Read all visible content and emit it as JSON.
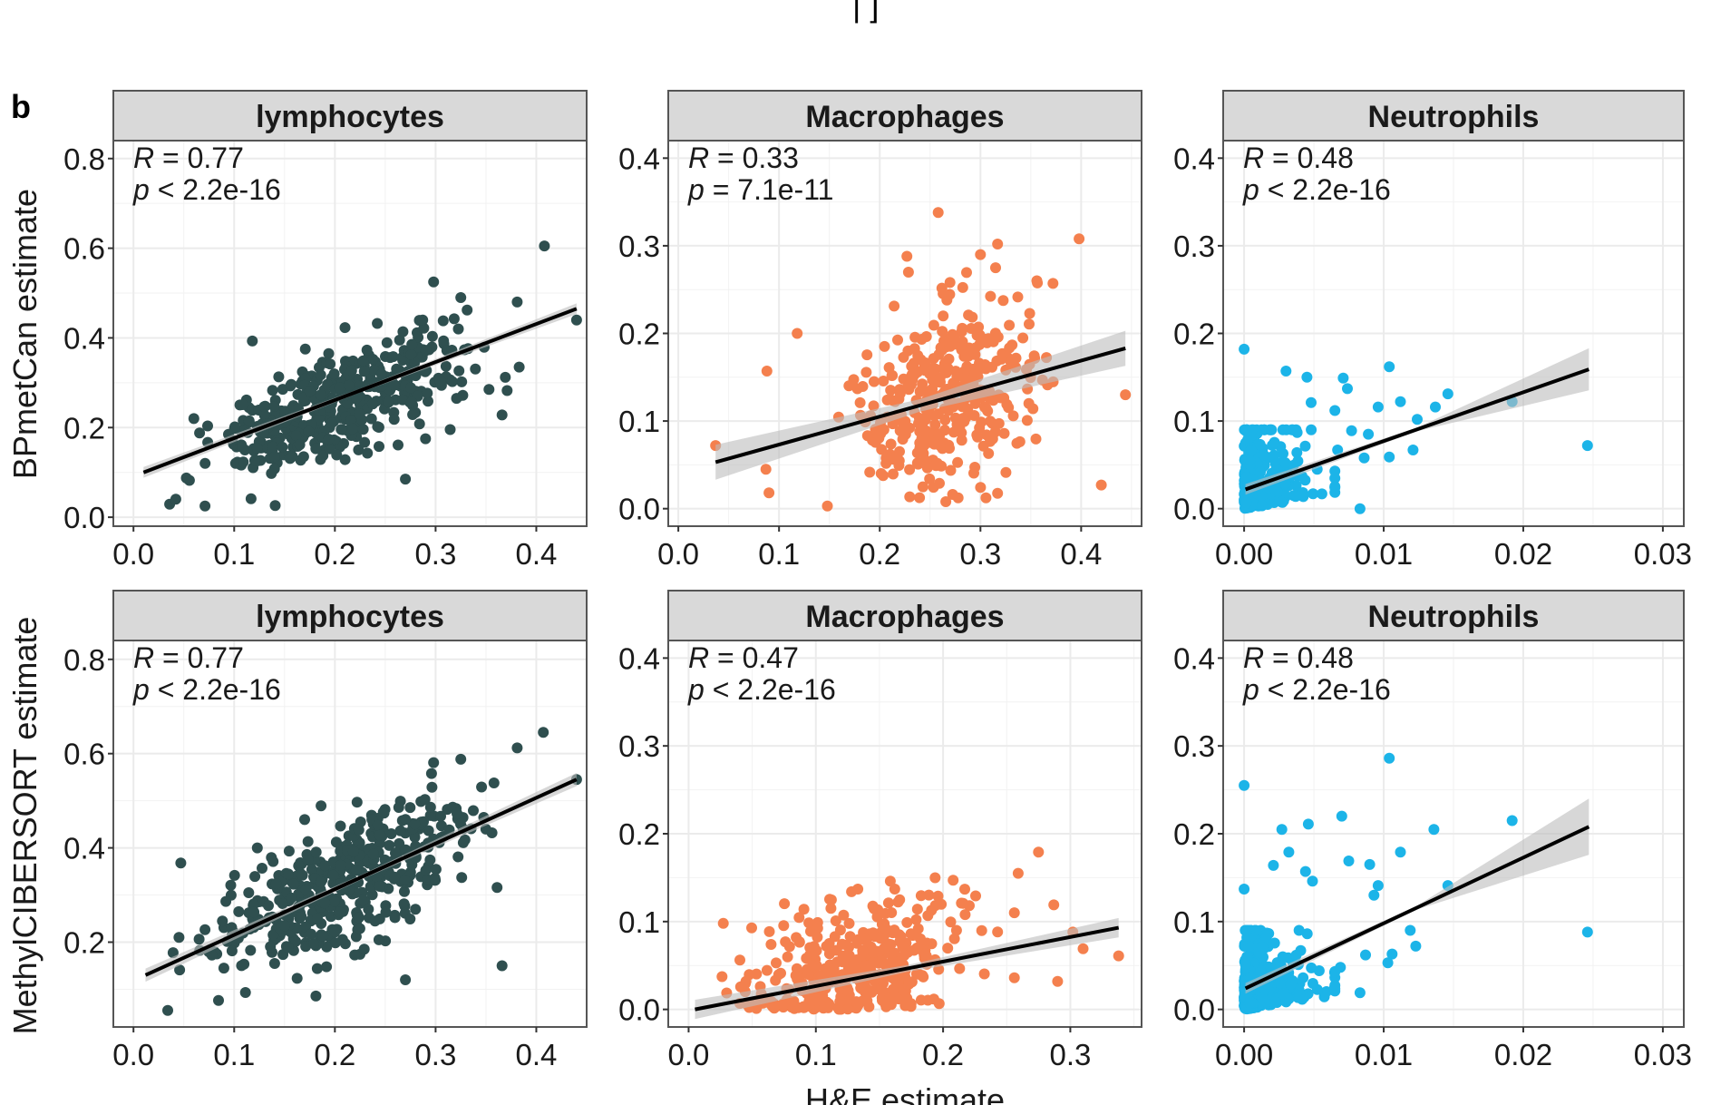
{
  "figure": {
    "panel_letter": "b",
    "top_cut_text": "| ]",
    "x_axis_title": "H&E estimate",
    "row_y_titles": [
      "BPmetCan estimate",
      "MethylCIBERSORT estimate"
    ]
  },
  "colors": {
    "lymphocytes": "#2f4f4f",
    "macrophages": "#f4804e",
    "neutrophils": "#1cb4e8",
    "fit_line": "#000000",
    "ci_band": "#bdbdbd",
    "strip_fill": "#d9d9d9",
    "grid": "#ebebeb"
  },
  "chart_data": [
    {
      "type": "scatter",
      "row": 0,
      "col": 0,
      "group": "lymphocytes",
      "title": "lymphocytes",
      "ylabel": "BPmetCan estimate",
      "xlabel": "",
      "annotation": {
        "R": "R = 0.77",
        "p": "p < 2.2e-16",
        "r_val": "0.77",
        "p_op": "<",
        "p_val": "2.2e-16"
      },
      "xlim": [
        -0.02,
        0.45
      ],
      "ylim": [
        -0.02,
        0.84
      ],
      "xticks": [
        0.0,
        0.1,
        0.2,
        0.3,
        0.4
      ],
      "xtick_labels": [
        "0.0",
        "0.1",
        "0.2",
        "0.3",
        "0.4"
      ],
      "yticks": [
        0.0,
        0.2,
        0.4,
        0.6,
        0.8
      ],
      "ytick_labels": [
        "0.0",
        "0.2",
        "0.4",
        "0.6",
        "0.8"
      ],
      "fit": {
        "x": [
          0.01,
          0.44
        ],
        "y": [
          0.1,
          0.465
        ],
        "ci": 0.012
      },
      "n_points_approx": 450,
      "generator": {
        "seed": 11,
        "n": 430,
        "xdist": [
          0.02,
          0.34
        ],
        "slope": 0.85,
        "intercept": 0.09,
        "noise": 0.06,
        "ymin": 0.02
      },
      "outliers": [
        [
          0.408,
          0.605
        ],
        [
          0.298,
          0.525
        ],
        [
          0.325,
          0.49
        ],
        [
          0.381,
          0.48
        ],
        [
          0.44,
          0.44
        ],
        [
          0.118,
          0.393
        ],
        [
          0.27,
          0.085
        ],
        [
          0.353,
          0.285
        ],
        [
          0.366,
          0.228
        ],
        [
          0.383,
          0.335
        ],
        [
          0.29,
          0.175
        ],
        [
          0.071,
          0.025
        ],
        [
          0.042,
          0.04
        ]
      ]
    },
    {
      "type": "scatter",
      "row": 0,
      "col": 1,
      "group": "macrophages",
      "title": "Macrophages",
      "ylabel": "",
      "xlabel": "",
      "annotation": {
        "R": "R = 0.33",
        "p": "p = 7.1e-11",
        "r_val": "0.33",
        "p_op": "=",
        "p_val": "7.1e-11"
      },
      "xlim": [
        -0.01,
        0.46
      ],
      "ylim": [
        -0.02,
        0.42
      ],
      "xticks": [
        0.0,
        0.1,
        0.2,
        0.3,
        0.4
      ],
      "xtick_labels": [
        "0.0",
        "0.1",
        "0.2",
        "0.3",
        "0.4"
      ],
      "yticks": [
        0.0,
        0.1,
        0.2,
        0.3,
        0.4
      ],
      "ytick_labels": [
        "0.0",
        "0.1",
        "0.2",
        "0.3",
        "0.4"
      ],
      "fit": {
        "x": [
          0.037,
          0.444
        ],
        "y": [
          0.053,
          0.183
        ],
        "ci": 0.02
      },
      "n_points_approx": 400,
      "generator": {
        "seed": 23,
        "n": 380,
        "xdist": [
          0.14,
          0.36
        ],
        "slope": 0.32,
        "intercept": 0.04,
        "noise": 0.05,
        "ymin": 0.005
      },
      "outliers": [
        [
          0.037,
          0.072
        ],
        [
          0.258,
          0.338
        ],
        [
          0.398,
          0.308
        ],
        [
          0.317,
          0.302
        ],
        [
          0.227,
          0.288
        ],
        [
          0.3,
          0.29
        ],
        [
          0.315,
          0.275
        ],
        [
          0.356,
          0.26
        ],
        [
          0.372,
          0.257
        ],
        [
          0.444,
          0.13
        ],
        [
          0.42,
          0.027
        ],
        [
          0.148,
          0.003
        ],
        [
          0.087,
          0.045
        ],
        [
          0.09,
          0.018
        ],
        [
          0.118,
          0.2
        ],
        [
          0.088,
          0.157
        ]
      ]
    },
    {
      "type": "scatter",
      "row": 0,
      "col": 2,
      "group": "neutrophils",
      "title": "Neutrophils",
      "ylabel": "",
      "xlabel": "",
      "annotation": {
        "R": "R = 0.48",
        "p": "p < 2.2e-16",
        "r_val": "0.48",
        "p_op": "<",
        "p_val": "2.2e-16"
      },
      "xlim": [
        -0.0015,
        0.0315
      ],
      "ylim": [
        -0.02,
        0.42
      ],
      "xticks": [
        0.0,
        0.01,
        0.02,
        0.03
      ],
      "xtick_labels": [
        "0.00",
        "0.01",
        "0.02",
        "0.03"
      ],
      "yticks": [
        0.0,
        0.1,
        0.2,
        0.3,
        0.4
      ],
      "ytick_labels": [
        "0.0",
        "0.1",
        "0.2",
        "0.3",
        "0.4"
      ],
      "fit": {
        "x": [
          0.0001,
          0.0247
        ],
        "y": [
          0.022,
          0.159
        ],
        "ci_end": 0.024
      },
      "n_points_approx": 450,
      "generator": {
        "seed": 37,
        "n": 380,
        "xexp": 0.0018,
        "xmax": 0.0065,
        "yexp": 0.028,
        "ymax": 0.09
      },
      "outliers": [
        [
          0.0,
          0.182
        ],
        [
          0.0104,
          0.162
        ],
        [
          0.003,
          0.157
        ],
        [
          0.0045,
          0.15
        ],
        [
          0.0071,
          0.149
        ],
        [
          0.0074,
          0.137
        ],
        [
          0.0146,
          0.131
        ],
        [
          0.0112,
          0.122
        ],
        [
          0.0192,
          0.122
        ],
        [
          0.0137,
          0.116
        ],
        [
          0.0096,
          0.116
        ],
        [
          0.0048,
          0.121
        ],
        [
          0.0065,
          0.112
        ],
        [
          0.0124,
          0.102
        ],
        [
          0.0246,
          0.072
        ],
        [
          0.0121,
          0.067
        ],
        [
          0.0104,
          0.059
        ],
        [
          0.0086,
          0.058
        ],
        [
          0.0083,
          0.0
        ],
        [
          0.0077,
          0.089
        ],
        [
          0.0089,
          0.085
        ],
        [
          0.0067,
          0.067
        ]
      ]
    },
    {
      "type": "scatter",
      "row": 1,
      "col": 0,
      "group": "lymphocytes",
      "title": "lymphocytes",
      "ylabel": "MethylCIBERSORT estimate",
      "xlabel": "",
      "annotation": {
        "R": "R = 0.77",
        "p": "p < 2.2e-16",
        "r_val": "0.77",
        "p_op": "<",
        "p_val": "2.2e-16"
      },
      "xlim": [
        -0.02,
        0.45
      ],
      "ylim": [
        0.02,
        0.84
      ],
      "xticks": [
        0.0,
        0.1,
        0.2,
        0.3,
        0.4
      ],
      "xtick_labels": [
        "0.0",
        "0.1",
        "0.2",
        "0.3",
        "0.4"
      ],
      "yticks": [
        0.2,
        0.4,
        0.6,
        0.8
      ],
      "ytick_labels": [
        "0.2",
        "0.4",
        "0.6",
        "0.8"
      ],
      "fit": {
        "x": [
          0.012,
          0.44
        ],
        "y": [
          0.13,
          0.545
        ],
        "ci": 0.014
      },
      "n_points_approx": 450,
      "generator": {
        "seed": 51,
        "n": 430,
        "xdist": [
          0.02,
          0.34
        ],
        "slope": 0.98,
        "intercept": 0.115,
        "noise": 0.065,
        "ymin": 0.05
      },
      "outliers": [
        [
          0.407,
          0.645
        ],
        [
          0.381,
          0.612
        ],
        [
          0.325,
          0.588
        ],
        [
          0.298,
          0.581
        ],
        [
          0.44,
          0.545
        ],
        [
          0.17,
          0.46
        ],
        [
          0.222,
          0.497
        ],
        [
          0.356,
          0.432
        ],
        [
          0.361,
          0.316
        ],
        [
          0.366,
          0.15
        ],
        [
          0.27,
          0.12
        ],
        [
          0.034,
          0.055
        ],
        [
          0.123,
          0.4
        ],
        [
          0.047,
          0.368
        ]
      ]
    },
    {
      "type": "scatter",
      "row": 1,
      "col": 1,
      "group": "macrophages",
      "title": "Macrophages",
      "ylabel": "",
      "xlabel": "H&E estimate",
      "annotation": {
        "R": "R = 0.47",
        "p": "p < 2.2e-16",
        "r_val": "0.47",
        "p_op": "<",
        "p_val": "2.2e-16"
      },
      "xlim": [
        -0.016,
        0.356
      ],
      "ylim": [
        -0.02,
        0.42
      ],
      "xticks": [
        0.0,
        0.1,
        0.2,
        0.3
      ],
      "xtick_labels": [
        "0.0",
        "0.1",
        "0.2",
        "0.3"
      ],
      "yticks": [
        0.0,
        0.1,
        0.2,
        0.3,
        0.4
      ],
      "ytick_labels": [
        "0.0",
        "0.1",
        "0.2",
        "0.3",
        "0.4"
      ],
      "fit": {
        "x": [
          0.005,
          0.338
        ],
        "y": [
          0.0,
          0.093
        ],
        "ci": 0.011
      },
      "n_points_approx": 420,
      "generator": {
        "seed": 67,
        "n": 400,
        "xdist": [
          0.005,
          0.225
        ],
        "slope": 0.34,
        "intercept": -0.005,
        "noise": 0.035,
        "ymin": 0.0
      },
      "outliers": [
        [
          0.275,
          0.179
        ],
        [
          0.259,
          0.155
        ],
        [
          0.128,
          0.134
        ],
        [
          0.133,
          0.137
        ],
        [
          0.162,
          0.137
        ],
        [
          0.196,
          0.129
        ],
        [
          0.287,
          0.119
        ],
        [
          0.256,
          0.11
        ],
        [
          0.338,
          0.061
        ],
        [
          0.31,
          0.069
        ],
        [
          0.29,
          0.032
        ],
        [
          0.256,
          0.036
        ],
        [
          0.302,
          0.088
        ]
      ]
    },
    {
      "type": "scatter",
      "row": 1,
      "col": 2,
      "group": "neutrophils",
      "title": "Neutrophils",
      "ylabel": "",
      "xlabel": "",
      "annotation": {
        "R": "R = 0.48",
        "p": "p < 2.2e-16",
        "r_val": "0.48",
        "p_op": "<",
        "p_val": "2.2e-16"
      },
      "xlim": [
        -0.0015,
        0.0315
      ],
      "ylim": [
        -0.02,
        0.42
      ],
      "xticks": [
        0.0,
        0.01,
        0.02,
        0.03
      ],
      "xtick_labels": [
        "0.00",
        "0.01",
        "0.02",
        "0.03"
      ],
      "yticks": [
        0.0,
        0.1,
        0.2,
        0.3,
        0.4
      ],
      "ytick_labels": [
        "0.0",
        "0.1",
        "0.2",
        "0.3",
        "0.4"
      ],
      "fit": {
        "x": [
          0.0001,
          0.0247
        ],
        "y": [
          0.024,
          0.208
        ],
        "ci_end": 0.032
      },
      "n_points_approx": 450,
      "generator": {
        "seed": 89,
        "n": 380,
        "xexp": 0.0018,
        "xmax": 0.0065,
        "yexp": 0.03,
        "ymax": 0.09
      },
      "outliers": [
        [
          0.0104,
          0.286
        ],
        [
          0.0,
          0.255
        ],
        [
          0.007,
          0.22
        ],
        [
          0.0192,
          0.215
        ],
        [
          0.0046,
          0.211
        ],
        [
          0.0027,
          0.205
        ],
        [
          0.0136,
          0.205
        ],
        [
          0.0112,
          0.179
        ],
        [
          0.0032,
          0.179
        ],
        [
          0.0075,
          0.169
        ],
        [
          0.009,
          0.165
        ],
        [
          0.0021,
          0.164
        ],
        [
          0.0044,
          0.157
        ],
        [
          0.0049,
          0.146
        ],
        [
          0.0096,
          0.141
        ],
        [
          0.0146,
          0.141
        ],
        [
          0.0,
          0.137
        ],
        [
          0.0093,
          0.13
        ],
        [
          0.0246,
          0.088
        ],
        [
          0.0119,
          0.09
        ],
        [
          0.0123,
          0.072
        ],
        [
          0.0106,
          0.063
        ],
        [
          0.0087,
          0.062
        ],
        [
          0.0103,
          0.053
        ],
        [
          0.0083,
          0.019
        ],
        [
          0.0069,
          0.048
        ]
      ]
    }
  ]
}
